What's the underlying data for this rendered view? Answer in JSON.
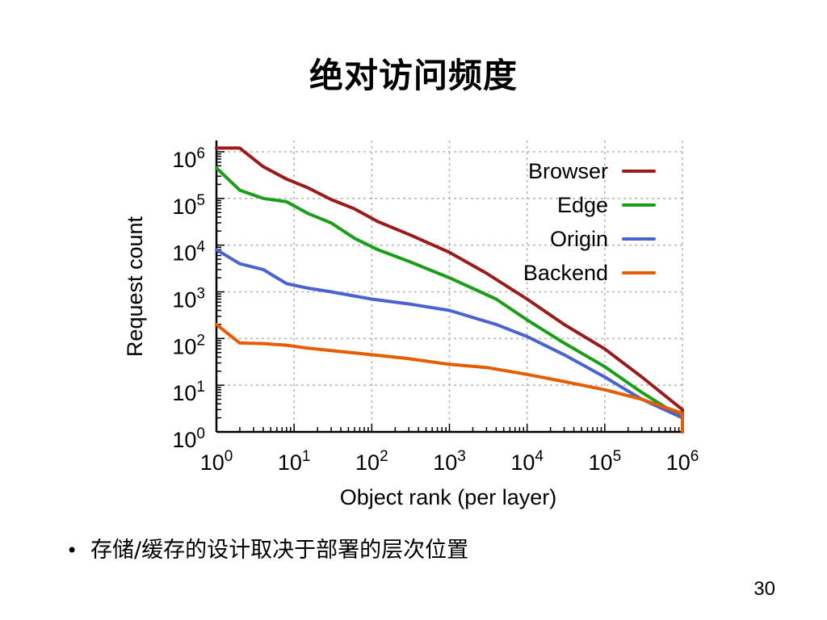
{
  "slide": {
    "title": "绝对访问频度",
    "bullet": "存储/缓存的设计取决于部署的层次位置",
    "page_number": "30"
  },
  "chart_data": {
    "type": "line",
    "xlabel": "Object rank (per layer)",
    "ylabel": "Request count",
    "x_scale": "log",
    "y_scale": "log",
    "xlim": [
      1,
      1000000
    ],
    "ylim": [
      1,
      1000000
    ],
    "x_ticks": [
      {
        "base": "10",
        "exp": "0"
      },
      {
        "base": "10",
        "exp": "1"
      },
      {
        "base": "10",
        "exp": "2"
      },
      {
        "base": "10",
        "exp": "3"
      },
      {
        "base": "10",
        "exp": "4"
      },
      {
        "base": "10",
        "exp": "5"
      },
      {
        "base": "10",
        "exp": "6"
      }
    ],
    "y_ticks": [
      {
        "base": "10",
        "exp": "0"
      },
      {
        "base": "10",
        "exp": "1"
      },
      {
        "base": "10",
        "exp": "2"
      },
      {
        "base": "10",
        "exp": "3"
      },
      {
        "base": "10",
        "exp": "4"
      },
      {
        "base": "10",
        "exp": "5"
      },
      {
        "base": "10",
        "exp": "6"
      }
    ],
    "grid": true,
    "legend_position": "top-right",
    "series": [
      {
        "name": "Browser",
        "color": "#9b1b1b",
        "x": [
          1,
          2,
          4,
          8,
          15,
          30,
          60,
          120,
          300,
          1000,
          3000,
          10000,
          30000,
          100000,
          300000,
          1000000,
          1800000
        ],
        "y": [
          1200000,
          1200000,
          480000,
          260000,
          170000,
          95000,
          60000,
          32000,
          17000,
          7000,
          2500,
          700,
          200,
          60,
          15,
          3,
          1
        ]
      },
      {
        "name": "Edge",
        "color": "#1a9e1a",
        "x": [
          1,
          2,
          4,
          8,
          15,
          30,
          60,
          120,
          300,
          1000,
          4000,
          10000,
          30000,
          100000,
          300000,
          1000000,
          1800000
        ],
        "y": [
          450000,
          150000,
          100000,
          85000,
          48000,
          30000,
          14000,
          8000,
          4500,
          2000,
          700,
          250,
          80,
          25,
          7,
          2,
          1
        ]
      },
      {
        "name": "Origin",
        "color": "#4a63cf",
        "x": [
          1,
          2,
          4,
          8,
          15,
          30,
          100,
          300,
          1000,
          4000,
          10000,
          30000,
          100000,
          300000,
          1000000,
          1800000
        ],
        "y": [
          8000,
          4000,
          3000,
          1500,
          1200,
          1000,
          700,
          550,
          400,
          200,
          110,
          45,
          15,
          5,
          2,
          1
        ]
      },
      {
        "name": "Backend",
        "color": "#e65c00",
        "x": [
          1,
          2,
          4,
          8,
          15,
          30,
          100,
          300,
          1000,
          3000,
          10000,
          30000,
          100000,
          300000,
          1000000,
          1800000
        ],
        "y": [
          200,
          80,
          78,
          72,
          62,
          55,
          45,
          37,
          28,
          24,
          17,
          12,
          8,
          5,
          2.5,
          1
        ]
      }
    ]
  }
}
